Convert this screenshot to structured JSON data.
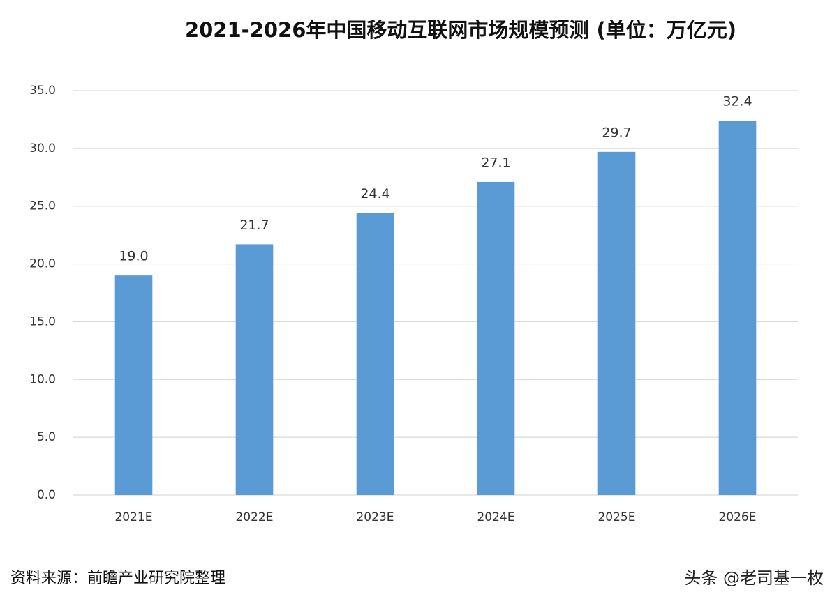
{
  "chart_data": {
    "type": "bar",
    "title": "2021-2026年中国移动互联网市场规模预测 (单位：万亿元)",
    "categories": [
      "2021E",
      "2022E",
      "2023E",
      "2024E",
      "2025E",
      "2026E"
    ],
    "values": [
      19.0,
      21.7,
      24.4,
      27.1,
      29.7,
      32.4
    ],
    "value_labels": [
      "19.0",
      "21.7",
      "24.4",
      "27.1",
      "29.7",
      "32.4"
    ],
    "color": "#5b9bd5",
    "ylim": [
      0,
      35
    ],
    "yticks": [
      {
        "value": 0,
        "label": "0.0"
      },
      {
        "value": 5,
        "label": "5.0"
      },
      {
        "value": 10,
        "label": "10.0"
      },
      {
        "value": 15,
        "label": "15.0"
      },
      {
        "value": 20,
        "label": "20.0"
      },
      {
        "value": 25,
        "label": "25.0"
      },
      {
        "value": 30,
        "label": "30.0"
      },
      {
        "value": 35,
        "label": "35.0"
      }
    ],
    "grid": true,
    "source": "资料来源：前瞻产业研究院整理",
    "credit": "头条 @老司基一枚"
  }
}
